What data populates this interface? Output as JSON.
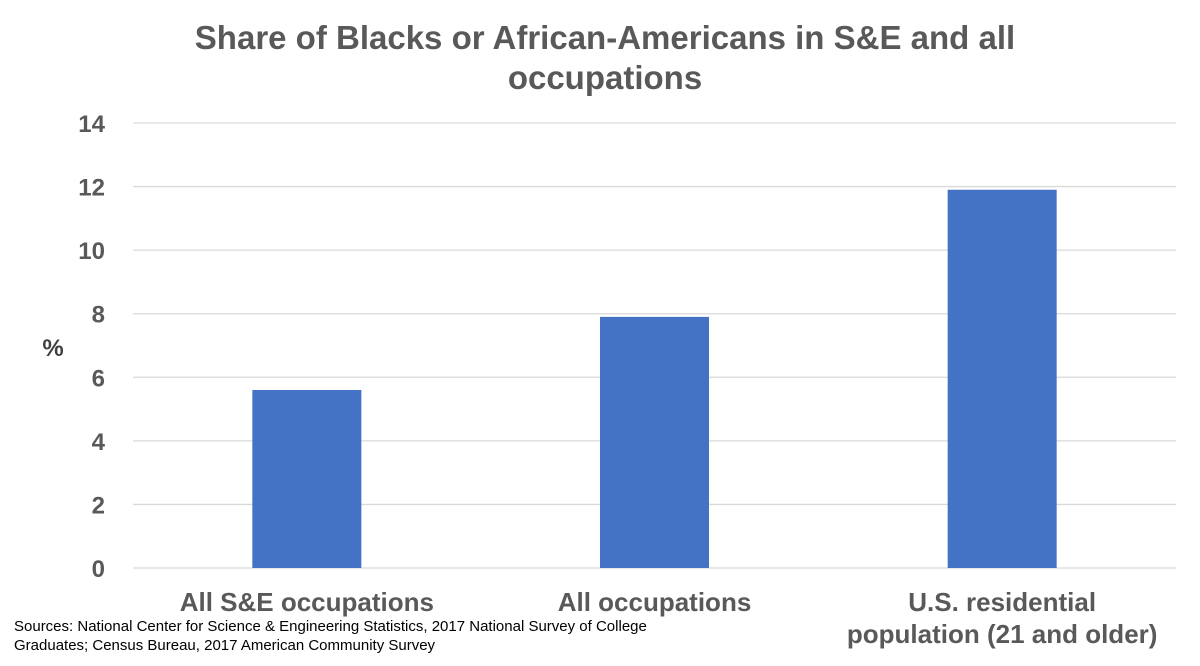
{
  "colors": {
    "bar": "#4472C4",
    "grid": "#D9D9D9",
    "text": "#595959"
  },
  "chart_data": {
    "type": "bar",
    "title": "Share of Blacks or African-Americans in S&E and all occupations",
    "xlabel": "",
    "ylabel": "%",
    "ylim": [
      0,
      14
    ],
    "yticks": [
      0,
      2,
      4,
      6,
      8,
      10,
      12,
      14
    ],
    "grid": true,
    "categories": [
      "All S&E occupations",
      "All occupations",
      "U.S. residential population (21 and older)"
    ],
    "category_lines": [
      [
        "All S&E occupations"
      ],
      [
        "All occupations"
      ],
      [
        "U.S. residential",
        "population (21 and older)"
      ]
    ],
    "values": [
      5.6,
      7.9,
      11.9
    ]
  },
  "source": "Sources: National Center for Science & Engineering Statistics, 2017 National Survey of College Graduates; Census Bureau, 2017 American Community Survey"
}
